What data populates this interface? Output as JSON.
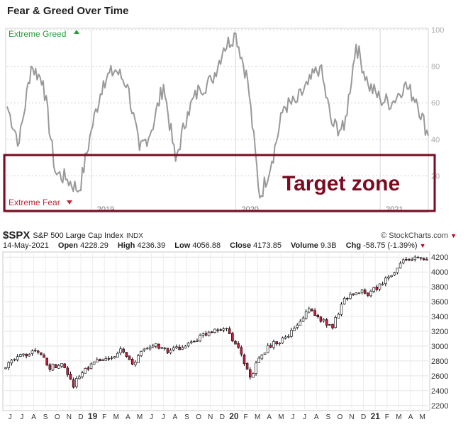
{
  "fear_greed": {
    "title": "Fear & Greed Over Time",
    "label_greed": "Extreme Greed",
    "label_fear": "Extreme Fear",
    "annotation": "Target zone",
    "colors": {
      "greed": "#2a9d3a",
      "fear": "#c0283a",
      "annotation": "#7a0b20",
      "line": "#999999"
    }
  },
  "spx_header": {
    "symbol": "$SPX",
    "name": "S&P 500 Large Cap Index",
    "exchange": "INDX",
    "brand": "© StockCharts.com",
    "date": "14-May-2021",
    "open_label": "Open",
    "open": "4228.29",
    "high_label": "High",
    "high": "4236.39",
    "low_label": "Low",
    "low": "4056.88",
    "close_label": "Close",
    "close": "4173.85",
    "volume_label": "Volume",
    "volume": "9.3B",
    "chg_label": "Chg",
    "chg": "-58.75 (-1.39%)",
    "chg_icon": "triangle-down-icon"
  },
  "chart_data": [
    {
      "type": "line",
      "title": "Fear & Greed Over Time",
      "ylim": [
        0,
        100
      ],
      "ytick_labels": [
        "20",
        "40",
        "60",
        "80",
        "100"
      ],
      "xtick_labels": [
        "2019",
        "2020",
        "2021"
      ],
      "x": [
        "2018-06",
        "2018-07",
        "2018-08",
        "2018-09",
        "2018-10",
        "2018-11",
        "2018-12",
        "2019-01",
        "2019-02",
        "2019-03",
        "2019-04",
        "2019-05",
        "2019-06",
        "2019-07",
        "2019-08",
        "2019-09",
        "2019-10",
        "2019-11",
        "2019-12",
        "2020-01",
        "2020-02",
        "2020-03",
        "2020-04",
        "2020-05",
        "2020-06",
        "2020-07",
        "2020-08",
        "2020-09",
        "2020-10",
        "2020-11",
        "2020-12",
        "2021-01",
        "2021-02",
        "2021-03",
        "2021-04",
        "2021-05"
      ],
      "series": [
        {
          "values": [
            58,
            38,
            80,
            72,
            22,
            18,
            12,
            45,
            72,
            78,
            70,
            34,
            45,
            70,
            28,
            55,
            68,
            72,
            90,
            98,
            72,
            8,
            28,
            58,
            60,
            70,
            80,
            48,
            45,
            92,
            70,
            62,
            60,
            70,
            62,
            42
          ]
        }
      ],
      "annotations": [
        "Extreme Greed",
        "Extreme Fear",
        "Target zone"
      ],
      "grid": true,
      "y_axis_side": "right"
    },
    {
      "type": "bar",
      "title": "$SPX S&P 500 Large Cap Index",
      "ylim": [
        2150,
        4250
      ],
      "ytick_labels": [
        "2200",
        "2400",
        "2600",
        "2800",
        "3000",
        "3200",
        "3400",
        "3600",
        "3800",
        "4000",
        "4200"
      ],
      "xtick_labels": [
        "J",
        "J",
        "A",
        "S",
        "O",
        "N",
        "D",
        "19",
        "F",
        "M",
        "A",
        "M",
        "J",
        "J",
        "A",
        "S",
        "O",
        "N",
        "D",
        "20",
        "F",
        "M",
        "A",
        "M",
        "J",
        "J",
        "A",
        "S",
        "O",
        "N",
        "D",
        "21",
        "F",
        "M",
        "A",
        "M"
      ],
      "x": [
        "2018-06",
        "2018-07",
        "2018-08",
        "2018-09",
        "2018-10",
        "2018-11",
        "2018-12",
        "2019-01",
        "2019-02",
        "2019-03",
        "2019-04",
        "2019-05",
        "2019-06",
        "2019-07",
        "2019-08",
        "2019-09",
        "2019-10",
        "2019-11",
        "2019-12",
        "2020-01",
        "2020-02",
        "2020-03",
        "2020-04",
        "2020-05",
        "2020-06",
        "2020-07",
        "2020-08",
        "2020-09",
        "2020-10",
        "2020-11",
        "2020-12",
        "2021-01",
        "2021-02",
        "2021-03",
        "2021-04",
        "2021-05"
      ],
      "series": [
        {
          "name": "Close",
          "values": [
            2720,
            2810,
            2900,
            2920,
            2720,
            2760,
            2480,
            2700,
            2790,
            2830,
            2940,
            2750,
            2950,
            3020,
            2920,
            2980,
            3040,
            3140,
            3230,
            3230,
            2960,
            2580,
            2910,
            3040,
            3100,
            3270,
            3500,
            3360,
            3270,
            3630,
            3750,
            3710,
            3810,
            3970,
            4180,
            4174
          ]
        }
      ],
      "candle_colors": {
        "up": "#ffffff",
        "down": "#cc1f3e",
        "wick": "#000000"
      },
      "grid": true,
      "y_axis_side": "right"
    }
  ]
}
